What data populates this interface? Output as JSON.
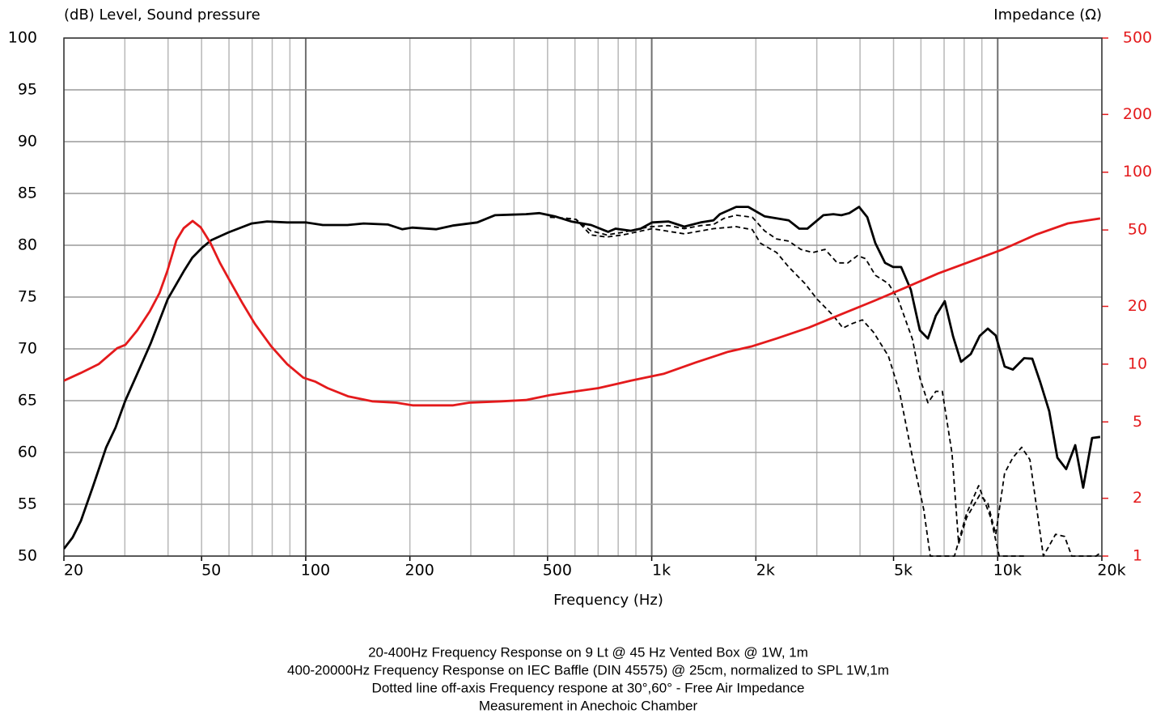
{
  "chart_data": {
    "type": "line",
    "ylabel": "(dB)  Level, Sound pressure",
    "y2label": "Impedance  (Ω)",
    "xlabel": "Frequency  (Hz)",
    "notes": [
      "20-400Hz Frequency Response on 9 Lt @ 45 Hz Vented Box @ 1W, 1m",
      "400-20000Hz Frequency Response on   IEC Baffle (DIN 45575) @ 25cm, normalized to SPL 1W,1m",
      "Dotted line off-axis Frequency respone at 30°,60°  -    Free Air Impedance",
      "Measurement in Anechoic Chamber"
    ],
    "xscale": "log",
    "y2scale": "log",
    "grid": true,
    "xlim": [
      20,
      20000
    ],
    "ylim": [
      50,
      100
    ],
    "y2lim": [
      1,
      500
    ],
    "xticks": [
      20,
      50,
      100,
      200,
      500,
      {
        "value": 1000,
        "label": "1k"
      },
      {
        "value": 2000,
        "label": "2k"
      },
      {
        "value": 5000,
        "label": "5k"
      },
      {
        "value": 10000,
        "label": "10k"
      },
      {
        "value": 20000,
        "label": "20k"
      }
    ],
    "xgrid": [
      20,
      30,
      40,
      50,
      60,
      70,
      80,
      90,
      100,
      200,
      300,
      400,
      500,
      600,
      700,
      800,
      900,
      1000,
      2000,
      3000,
      4000,
      5000,
      6000,
      7000,
      8000,
      9000,
      10000,
      20000
    ],
    "yticks": [
      50,
      55,
      60,
      65,
      70,
      75,
      80,
      85,
      90,
      95,
      100
    ],
    "y2ticks": [
      1,
      2,
      5,
      10,
      20,
      50,
      100,
      200,
      500
    ],
    "y2color": "#e41a1c",
    "series": [
      {
        "color": "#000000",
        "linestyle": "solid",
        "x": [
          20,
          21.2,
          22.4,
          24.2,
          26.5,
          28.2,
          30.1,
          33.5,
          35.6,
          39.9,
          44.6,
          47.0,
          50.3,
          53.4,
          59.9,
          69.8,
          77.3,
          88.4,
          100,
          112,
          132,
          147,
          173,
          190,
          203,
          238,
          266,
          313,
          352,
          433,
          473,
          524,
          585,
          668,
          748,
          786,
          870,
          929,
          1002,
          1117,
          1242,
          1384,
          1508,
          1574,
          1754,
          1901,
          2118,
          2490,
          2668,
          2817,
          3133,
          3349,
          3532,
          3725,
          3975,
          4200,
          4430,
          4725,
          4985,
          5260,
          5610,
          5955,
          6285,
          6625,
          7030,
          7430,
          7835,
          8360,
          8870,
          9360,
          9870,
          10470,
          11060,
          11920,
          12590,
          13270,
          14090,
          14870,
          15770,
          16750,
          17660,
          18740,
          19770
        ],
        "values": [
          50.7,
          51.8,
          53.4,
          56.6,
          60.5,
          62.4,
          65.0,
          68.5,
          70.5,
          74.8,
          77.6,
          78.8,
          79.8,
          80.5,
          81.25,
          82.1,
          82.3,
          82.2,
          82.2,
          81.95,
          81.95,
          82.1,
          82.0,
          81.55,
          81.7,
          81.55,
          81.9,
          82.2,
          82.9,
          83.0,
          83.1,
          82.8,
          82.3,
          81.95,
          81.3,
          81.6,
          81.4,
          81.6,
          82.2,
          82.3,
          81.8,
          82.2,
          82.4,
          83.0,
          83.7,
          83.7,
          82.8,
          82.4,
          81.6,
          81.6,
          82.9,
          83.0,
          82.9,
          83.1,
          83.7,
          82.7,
          80.2,
          78.3,
          77.9,
          77.9,
          75.7,
          71.8,
          71.0,
          73.2,
          74.6,
          71.2,
          68.75,
          69.5,
          71.25,
          71.95,
          71.3,
          68.3,
          68.0,
          69.1,
          69.05,
          66.8,
          64.0,
          59.5,
          58.4,
          60.7,
          56.6,
          61.4,
          61.5
        ]
      },
      {
        "color": "#000000",
        "linestyle": "dashed",
        "x": [
          508,
          566,
          604,
          666,
          741,
          825,
          919,
          1002,
          1117,
          1242,
          1384,
          1508,
          1618,
          1754,
          1954,
          2118,
          2296,
          2490,
          2698,
          2925,
          3171,
          3437,
          3690,
          3934,
          4150,
          4428,
          4832,
          5154,
          5673,
          5955,
          6285,
          6625,
          6918,
          7380,
          7710,
          8130,
          8870,
          9360,
          9870,
          10470,
          11060,
          11730,
          12390,
          13550,
          14700,
          15600,
          16370,
          19250,
          19770
        ],
        "values": [
          82.7,
          82.6,
          82.5,
          81.4,
          81.0,
          81.25,
          81.6,
          81.8,
          81.9,
          81.6,
          81.9,
          82.0,
          82.6,
          82.9,
          82.7,
          81.4,
          80.6,
          80.4,
          79.6,
          79.3,
          79.6,
          78.3,
          78.3,
          79.0,
          78.7,
          77.1,
          76.3,
          74.8,
          70.9,
          67.2,
          64.8,
          65.9,
          65.9,
          59.9,
          51.2,
          53.7,
          55.9,
          55.1,
          52.1,
          58.0,
          59.5,
          60.5,
          59.3,
          50,
          52.1,
          51.9,
          50,
          50,
          50.3
        ]
      },
      {
        "color": "#000000",
        "linestyle": "dashed",
        "x": [
          508,
          566,
          604,
          666,
          741,
          825,
          1002,
          1242,
          1508,
          1754,
          1954,
          2061,
          2296,
          2490,
          2774,
          3006,
          3349,
          3571,
          3768,
          4063,
          4377,
          4832,
          5205,
          5673,
          6111,
          6383,
          6730,
          7110,
          7500,
          8130,
          8810,
          9550,
          10100,
          12000
        ],
        "values": [
          82.7,
          82.6,
          82.5,
          81.0,
          80.8,
          81.0,
          81.6,
          81.1,
          81.6,
          81.8,
          81.5,
          80.2,
          79.3,
          77.9,
          76.3,
          74.8,
          73.2,
          72.0,
          72.4,
          72.8,
          71.6,
          69.3,
          65.8,
          59.5,
          54.5,
          50,
          50,
          50,
          50,
          54.1,
          56.8,
          53.7,
          50,
          50
        ]
      },
      {
        "color": "#e41a1c",
        "linestyle": "solid",
        "axis": "y2",
        "x": [
          20,
          22.4,
          25.2,
          28.5,
          30.1,
          32.6,
          35.4,
          37.8,
          39.8,
          42.3,
          44.4,
          47.1,
          49.7,
          53.0,
          56.5,
          60.0,
          65.7,
          71.3,
          79.4,
          88.4,
          98.4,
          106.7,
          115.6,
          132.4,
          155.6,
          182.8,
          203.7,
          239.3,
          266.6,
          296.7,
          368.2,
          432.6,
          508.2,
          566.3,
          701.5,
          870.8,
          1081,
          1340,
          1663,
          1954,
          2296,
          2846,
          3532,
          4377,
          5432,
          6730,
          8360,
          10370,
          12860,
          15950,
          19770
        ],
        "values": [
          8.2,
          9.0,
          10.0,
          12.1,
          12.6,
          15.0,
          18.8,
          23.5,
          30.5,
          44.2,
          51.1,
          55.7,
          51.6,
          42.9,
          33.7,
          27.7,
          20.7,
          16.2,
          12.4,
          10.0,
          8.5,
          8.1,
          7.5,
          6.8,
          6.4,
          6.3,
          6.1,
          6.1,
          6.1,
          6.3,
          6.4,
          6.5,
          6.9,
          7.1,
          7.5,
          8.2,
          8.9,
          10.2,
          11.6,
          12.4,
          13.6,
          15.5,
          18.2,
          21.3,
          25.1,
          29.7,
          34.3,
          39.7,
          47.2,
          54.1,
          57.4
        ]
      }
    ]
  }
}
